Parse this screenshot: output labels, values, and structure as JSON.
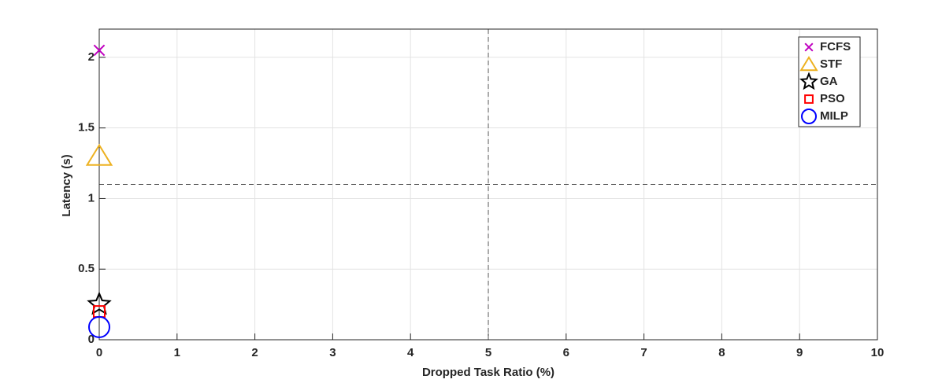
{
  "chart_data": {
    "type": "scatter",
    "x_label": "Dropped Task Ratio (%)",
    "y_label": "Latency (s)",
    "xlim": [
      0,
      10
    ],
    "xticks": [
      0,
      1,
      2,
      3,
      4,
      5,
      6,
      7,
      8,
      9,
      10
    ],
    "ylim": [
      0,
      2.2
    ],
    "yticks": [
      0,
      0.5,
      1,
      1.5,
      2
    ],
    "grid": true,
    "legend": "upper right",
    "reference_lines": {
      "x": 5,
      "y": 1.1
    },
    "series": [
      {
        "name": "FCFS",
        "color": "#c000c0",
        "marker": "x",
        "x": [
          0
        ],
        "values": [
          2.05
        ]
      },
      {
        "name": "STF",
        "color": "#edb120",
        "marker": "triangle",
        "x": [
          0
        ],
        "values": [
          1.3
        ]
      },
      {
        "name": "GA",
        "color": "#000000",
        "marker": "star",
        "x": [
          0
        ],
        "values": [
          0.25
        ]
      },
      {
        "name": "PSO",
        "color": "#ff0000",
        "marker": "square",
        "x": [
          0
        ],
        "values": [
          0.2
        ]
      },
      {
        "name": "MILP",
        "color": "#0000ff",
        "marker": "circle",
        "x": [
          0
        ],
        "values": [
          0.09
        ]
      }
    ]
  }
}
